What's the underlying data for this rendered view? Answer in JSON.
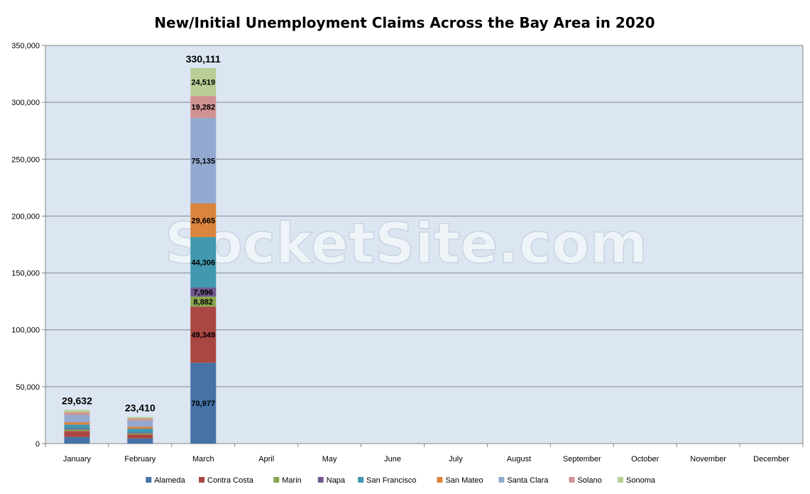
{
  "chart_data": {
    "type": "bar",
    "stacked": true,
    "title": "New/Initial Unemployment Claims Across the Bay Area in 2020",
    "watermark": "SocketSite.com",
    "categories": [
      "January",
      "February",
      "March",
      "April",
      "May",
      "June",
      "July",
      "August",
      "September",
      "October",
      "November",
      "December"
    ],
    "ylim": [
      0,
      350000
    ],
    "yticks": [
      0,
      50000,
      100000,
      150000,
      200000,
      250000,
      300000,
      350000
    ],
    "ytick_labels": [
      "0",
      "50,000",
      "100,000",
      "150,000",
      "200,000",
      "250,000",
      "300,000",
      "350,000"
    ],
    "grid": true,
    "legend_position": "bottom",
    "plot_background": "#dce6f2",
    "series": [
      {
        "name": "Alameda",
        "color": "#4572a7",
        "values": [
          5800,
          4500,
          70977,
          null,
          null,
          null,
          null,
          null,
          null,
          null,
          null,
          null
        ],
        "labels": [
          null,
          null,
          "70,977"
        ]
      },
      {
        "name": "Contra Costa",
        "color": "#aa4643",
        "values": [
          5200,
          3500,
          49349,
          null,
          null,
          null,
          null,
          null,
          null,
          null,
          null,
          null
        ],
        "labels": [
          null,
          null,
          "49,349"
        ]
      },
      {
        "name": "Marin",
        "color": "#89a54e",
        "values": [
          1300,
          1000,
          8882,
          null,
          null,
          null,
          null,
          null,
          null,
          null,
          null,
          null
        ],
        "labels": [
          null,
          null,
          "8,882"
        ]
      },
      {
        "name": "Napa",
        "color": "#71588f",
        "values": [
          800,
          700,
          7996,
          null,
          null,
          null,
          null,
          null,
          null,
          null,
          null,
          null
        ],
        "labels": [
          null,
          null,
          "7,996"
        ]
      },
      {
        "name": "San Francisco",
        "color": "#4198af",
        "values": [
          3600,
          3400,
          44306,
          null,
          null,
          null,
          null,
          null,
          null,
          null,
          null,
          null
        ],
        "labels": [
          null,
          null,
          "44,306"
        ]
      },
      {
        "name": "San Mateo",
        "color": "#db843d",
        "values": [
          2000,
          1800,
          29665,
          null,
          null,
          null,
          null,
          null,
          null,
          null,
          null,
          null
        ],
        "labels": [
          null,
          null,
          "29,665"
        ]
      },
      {
        "name": "Santa Clara",
        "color": "#93a9cf",
        "values": [
          6500,
          5300,
          75135,
          null,
          null,
          null,
          null,
          null,
          null,
          null,
          null,
          null
        ],
        "labels": [
          null,
          null,
          "75,135"
        ]
      },
      {
        "name": "Solano",
        "color": "#d19392",
        "values": [
          2400,
          1900,
          19282,
          null,
          null,
          null,
          null,
          null,
          null,
          null,
          null,
          null
        ],
        "labels": [
          null,
          null,
          "19,282"
        ]
      },
      {
        "name": "Sonoma",
        "color": "#b9cd96",
        "values": [
          2032,
          1310,
          24519,
          null,
          null,
          null,
          null,
          null,
          null,
          null,
          null,
          null
        ],
        "labels": [
          null,
          null,
          "24,519"
        ]
      }
    ],
    "totals": [
      29632,
      23410,
      330111,
      null,
      null,
      null,
      null,
      null,
      null,
      null,
      null,
      null
    ],
    "total_labels": [
      "29,632",
      "23,410",
      "330,111",
      null,
      null,
      null,
      null,
      null,
      null,
      null,
      null,
      null
    ]
  }
}
